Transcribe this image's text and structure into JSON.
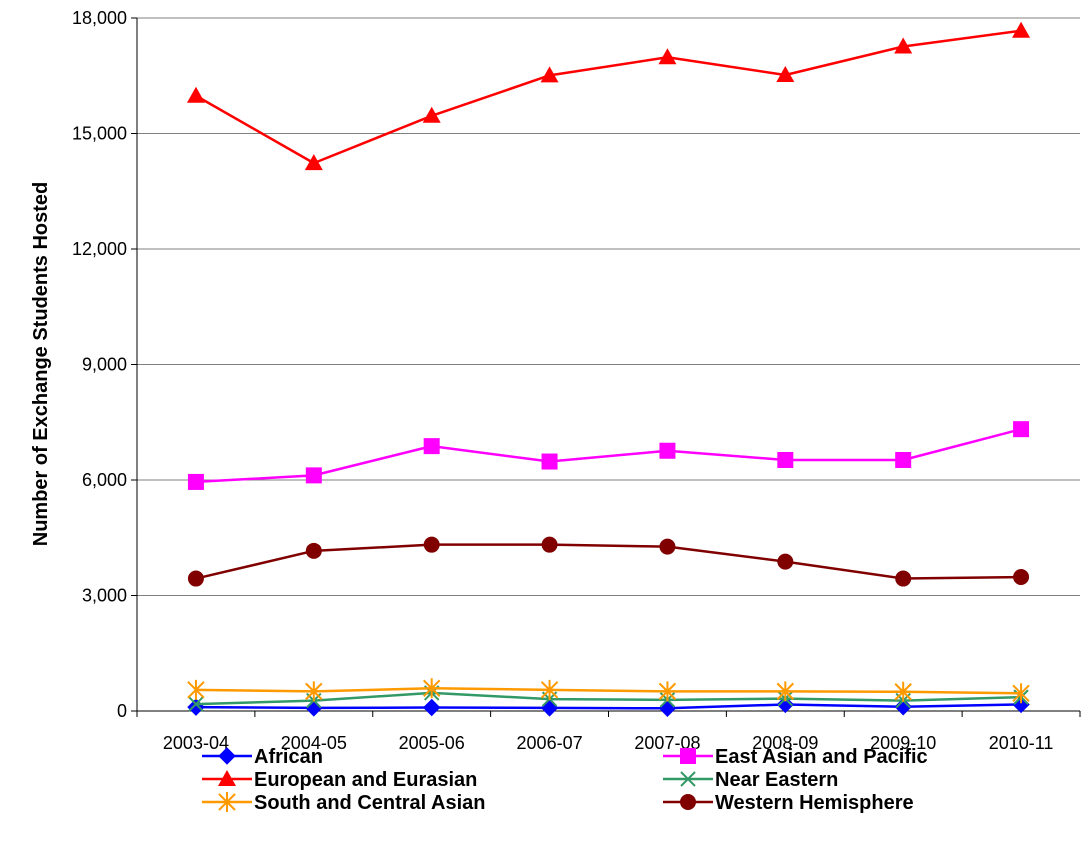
{
  "chart_data": {
    "type": "line",
    "title": "",
    "xlabel": "",
    "ylabel": "Number of Exchange Students Hosted",
    "categories": [
      "2003-04",
      "2004-05",
      "2005-06",
      "2006-07",
      "2007-08",
      "2008-09",
      "2009-10",
      "2010-11"
    ],
    "ylim": [
      0,
      18000
    ],
    "yticks": [
      0,
      3000,
      6000,
      9000,
      12000,
      15000,
      18000
    ],
    "ytick_labels": [
      "0",
      "3,000",
      "6,000",
      "9,000",
      "12,000",
      "15,000",
      "18,000"
    ],
    "grid": "horizontal",
    "legend_position": "bottom",
    "series": [
      {
        "name": "African",
        "color": "#0000FF",
        "marker": "diamond",
        "values": [
          100,
          80,
          90,
          80,
          70,
          170,
          110,
          170
        ]
      },
      {
        "name": "East Asian and Pacific",
        "color": "#FF00FF",
        "marker": "square",
        "values": [
          5950,
          6120,
          6880,
          6480,
          6760,
          6520,
          6520,
          7320
        ]
      },
      {
        "name": "European and Eurasian",
        "color": "#FF0000",
        "marker": "triangle",
        "values": [
          15980,
          14230,
          15460,
          16510,
          16980,
          16520,
          17260,
          17670
        ]
      },
      {
        "name": "Near Eastern",
        "color": "#339966",
        "marker": "x",
        "values": [
          180,
          270,
          470,
          310,
          290,
          320,
          270,
          360
        ]
      },
      {
        "name": "South and Central Asian",
        "color": "#FF9900",
        "marker": "asterisk",
        "values": [
          550,
          510,
          590,
          550,
          510,
          510,
          500,
          460
        ]
      },
      {
        "name": "Western Hemisphere",
        "color": "#800000",
        "marker": "circle",
        "values": [
          3440,
          4160,
          4320,
          4320,
          4270,
          3880,
          3440,
          3480
        ]
      }
    ]
  }
}
